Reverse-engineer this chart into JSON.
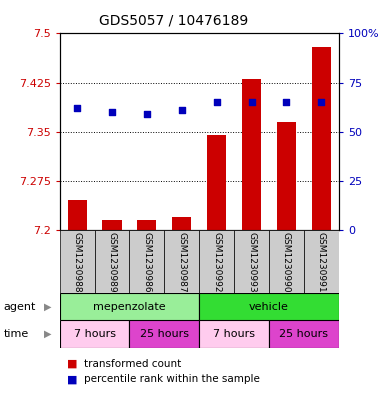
{
  "title": "GDS5057 / 10476189",
  "samples": [
    "GSM1230988",
    "GSM1230989",
    "GSM1230986",
    "GSM1230987",
    "GSM1230992",
    "GSM1230993",
    "GSM1230990",
    "GSM1230991"
  ],
  "transformed_counts": [
    7.245,
    7.215,
    7.215,
    7.22,
    7.345,
    7.43,
    7.365,
    7.48
  ],
  "percentile_ranks": [
    62,
    60,
    59,
    61,
    65,
    65,
    65,
    65
  ],
  "ylim_left": [
    7.2,
    7.5
  ],
  "ylim_right": [
    0,
    100
  ],
  "yticks_left": [
    7.2,
    7.275,
    7.35,
    7.425,
    7.5
  ],
  "yticks_right": [
    0,
    25,
    50,
    75,
    100
  ],
  "bar_color": "#cc0000",
  "dot_color": "#0000bb",
  "agent_colors": [
    "#99ee99",
    "#33dd33"
  ],
  "agent_labels": [
    "mepenzolate",
    "vehicle"
  ],
  "agent_ranges": [
    [
      0,
      4
    ],
    [
      4,
      8
    ]
  ],
  "time_colors": [
    "#ffccee",
    "#dd44cc"
  ],
  "time_labels": [
    "7 hours",
    "25 hours"
  ],
  "time_ranges": [
    [
      0,
      2
    ],
    [
      2,
      4
    ],
    [
      4,
      6
    ],
    [
      6,
      8
    ]
  ],
  "time_color_pattern": [
    0,
    1,
    0,
    1
  ],
  "tick_label_color_left": "#cc0000",
  "tick_label_color_right": "#0000bb",
  "sample_bg": "#cccccc",
  "title_fontsize": 10,
  "axis_fontsize": 8,
  "label_fontsize": 8
}
